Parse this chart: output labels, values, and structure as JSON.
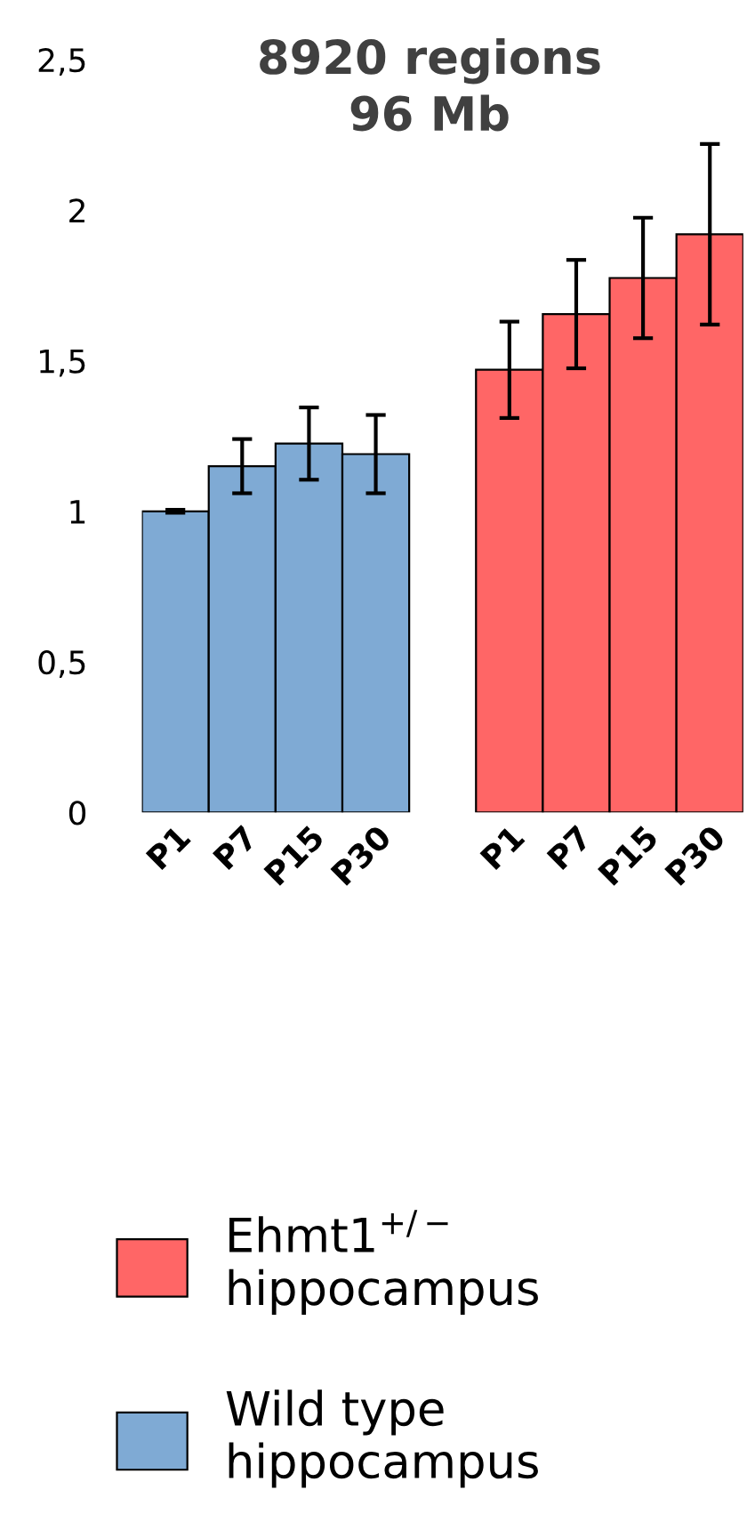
{
  "chart_data": {
    "type": "bar",
    "title": "8920 regions\n96 Mb",
    "categories": [
      "P1",
      "P7",
      "P15",
      "P30",
      null,
      "P1",
      "P7",
      "P15",
      "P30"
    ],
    "series": [
      {
        "name": "Ehmt1$^{+/−}$\nhippocampus",
        "color": "#ff6666",
        "values": [
          null,
          null,
          null,
          null,
          null,
          1.47,
          1.655,
          1.775,
          1.92
        ],
        "errors": [
          null,
          null,
          null,
          null,
          null,
          0.16,
          0.18,
          0.2,
          0.3
        ]
      },
      {
        "name": "Wild type\nhippocampus",
        "color": "#7faad4",
        "values": [
          1.0,
          1.15,
          1.225,
          1.19,
          null,
          null,
          null,
          null,
          null
        ],
        "errors": [
          0.005,
          0.09,
          0.12,
          0.13,
          null,
          null,
          null,
          null,
          null
        ]
      }
    ],
    "ylim": [
      0,
      2.5
    ],
    "yticks": [
      0,
      {
        "value": 0.5,
        "label": "0,5"
      },
      1,
      {
        "value": 1.5,
        "label": "1,5"
      },
      2,
      {
        "value": 2.5,
        "label": "2,5"
      }
    ],
    "grid": false,
    "legend": "bottom"
  }
}
